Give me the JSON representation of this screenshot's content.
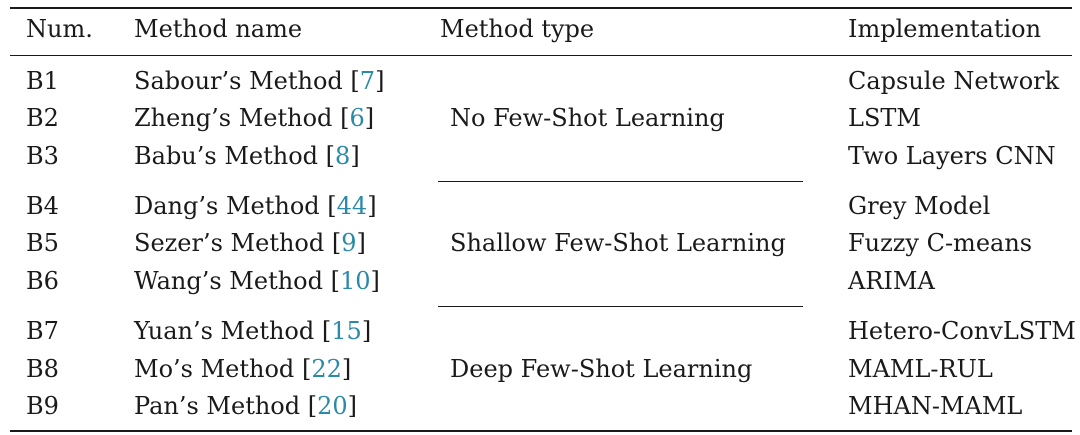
{
  "table": {
    "headers": {
      "num": "Num.",
      "name": "Method name",
      "type": "Method type",
      "impl": "Implementation"
    },
    "rows": [
      {
        "num": "B1",
        "name": "Sabour’s Method",
        "ref": "7",
        "impl": "Capsule Network"
      },
      {
        "num": "B2",
        "name": "Zheng’s Method",
        "ref": "6",
        "impl": "LSTM"
      },
      {
        "num": "B3",
        "name": "Babu’s Method",
        "ref": "8",
        "impl": "Two Layers CNN"
      },
      {
        "num": "B4",
        "name": "Dang’s Method",
        "ref": "44",
        "impl": "Grey Model"
      },
      {
        "num": "B5",
        "name": "Sezer’s Method",
        "ref": "9",
        "impl": "Fuzzy C-means"
      },
      {
        "num": "B6",
        "name": "Wang’s Method",
        "ref": "10",
        "impl": "ARIMA"
      },
      {
        "num": "B7",
        "name": "Yuan’s Method",
        "ref": "15",
        "impl": "Hetero-ConvLSTM"
      },
      {
        "num": "B8",
        "name": "Mo’s Method",
        "ref": "22",
        "impl": "MAML-RUL"
      },
      {
        "num": "B9",
        "name": "Pan’s Method",
        "ref": "20",
        "impl": "MHAN-MAML"
      }
    ],
    "groups": [
      "No Few-Shot Learning",
      "Shallow Few-Shot Learning",
      "Deep Few-Shot Learning"
    ],
    "cite_open": "[",
    "cite_close": "]"
  }
}
